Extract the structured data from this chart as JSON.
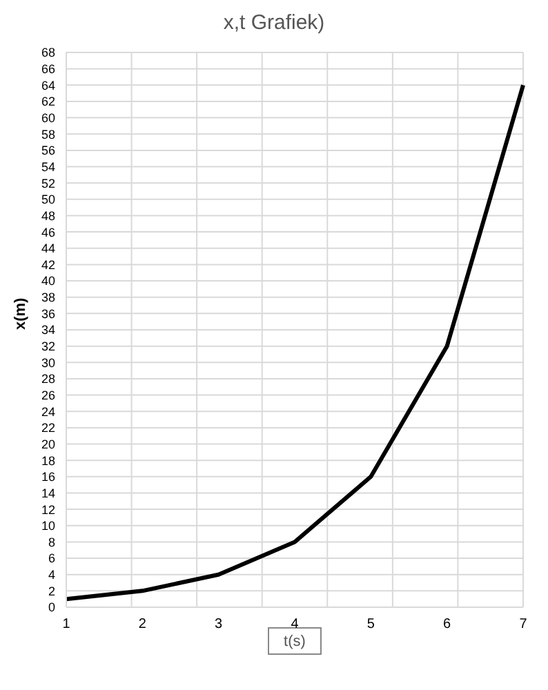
{
  "chart_data": {
    "type": "line",
    "title": "x,t Grafiek)",
    "xlabel": "t(s)",
    "ylabel": "x(m)",
    "categories": [
      "1",
      "2",
      "3",
      "4",
      "5",
      "6",
      "7"
    ],
    "series": [
      {
        "color": "#000000",
        "values": [
          1,
          2,
          4,
          8,
          16,
          32,
          64
        ]
      }
    ],
    "ylim": [
      0,
      68
    ],
    "yticks": [
      0,
      2,
      4,
      6,
      8,
      10,
      12,
      14,
      16,
      18,
      20,
      22,
      24,
      26,
      28,
      30,
      32,
      34,
      36,
      38,
      40,
      42,
      44,
      46,
      48,
      50,
      52,
      54,
      56,
      58,
      60,
      62,
      64,
      66,
      68
    ],
    "grid": true,
    "marker": "none",
    "line_style": "solid",
    "legend": false
  }
}
